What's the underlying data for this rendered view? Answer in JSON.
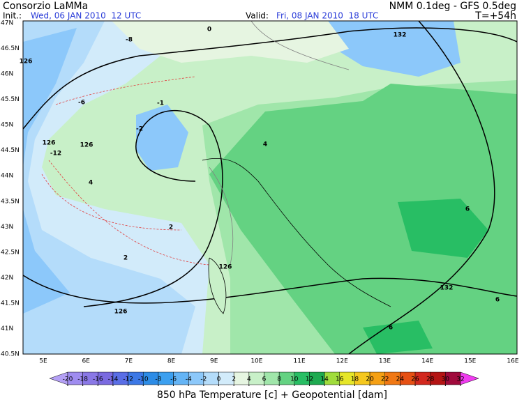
{
  "header": {
    "title": "Consorzio LaMMa",
    "model": "NMM 0.1deg - GFS 0.5deg",
    "init_label": "Init.:",
    "init_value": "Wed, 06 JAN 2010  12 UTC",
    "valid_label": "Valid:",
    "valid_value": "Fri, 08 JAN 2010  18 UTC",
    "lead_time": "T=+54h"
  },
  "map": {
    "lat_labels": [
      "47N",
      "46.5N",
      "46N",
      "45.5N",
      "45N",
      "44.5N",
      "44N",
      "43.5N",
      "43N",
      "42.5N",
      "42N",
      "41.5N",
      "41N",
      "40.5N"
    ],
    "lon_labels": [
      "5E",
      "6E",
      "7E",
      "8E",
      "9E",
      "10E",
      "11E",
      "12E",
      "13E",
      "14E",
      "15E",
      "16E"
    ],
    "contour_labels": [
      "126",
      "126",
      "126",
      "126",
      "126",
      "132",
      "132",
      "-8",
      "-6",
      "-12",
      "-2",
      "2",
      "4",
      "4",
      "6",
      "6",
      "6",
      "2",
      "-1",
      "0"
    ]
  },
  "colorbar": {
    "ticks": [
      -20,
      -18,
      -16,
      -14,
      -12,
      -10,
      -8,
      -6,
      -4,
      -2,
      0,
      2,
      4,
      6,
      8,
      10,
      12,
      14,
      16,
      18,
      20,
      22,
      24,
      26,
      28,
      30,
      32
    ],
    "colors": [
      "#b4a0f5",
      "#9f8cf0",
      "#8a78e6",
      "#7a6ae0",
      "#5a6ee6",
      "#3c78e6",
      "#2d8ce6",
      "#3ca0f0",
      "#64b4f5",
      "#8cc8fa",
      "#b4dcfa",
      "#d2ebfa",
      "#e6f5e1",
      "#c8f0c8",
      "#a0e6aa",
      "#64d282",
      "#28be64",
      "#1eaa50",
      "#a0dc3c",
      "#e6e628",
      "#f5c81e",
      "#f5a014",
      "#f07814",
      "#e65014",
      "#d2281e",
      "#b41414",
      "#a00a3c",
      "#f03cf0"
    ],
    "caption": "850 hPa Temperature [c] + Geopotential [dam]"
  }
}
